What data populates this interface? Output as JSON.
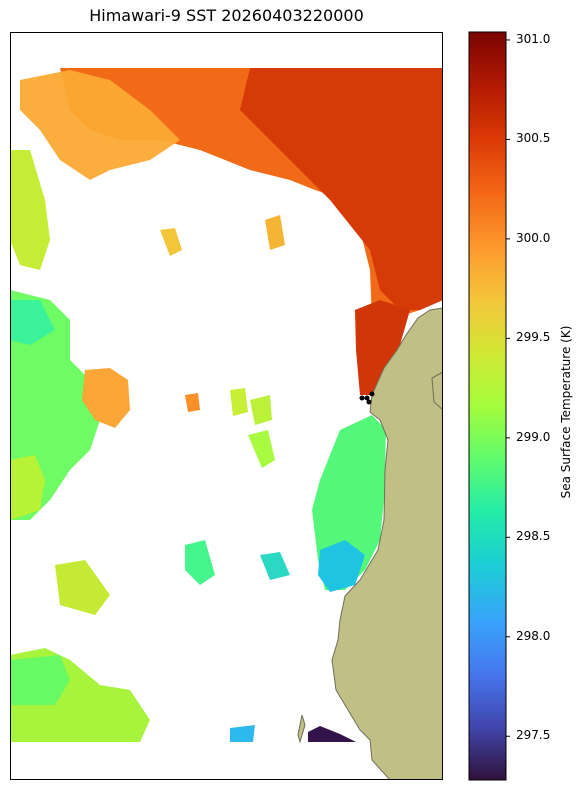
{
  "title": "Himawari-9 SST 20260403220000",
  "colorbar": {
    "label": "Sea Surface Temperature (K)",
    "min": 297.28,
    "max": 301.04,
    "colormap": "turbo",
    "ticks": [
      "297.5",
      "298.0",
      "298.5",
      "299.0",
      "299.5",
      "300.0",
      "300.5",
      "301.0"
    ]
  },
  "map": {
    "land_color": "#c0bf86",
    "coast_color": "#6f6e5a",
    "nodata_color": "#ffffff",
    "point_marker_color": "#000000",
    "regions": [
      {
        "name": "north-warm-belt",
        "sst_k": 300.4
      },
      {
        "name": "east-coastal-warm",
        "sst_k": 300.6
      },
      {
        "name": "northwest-scattered",
        "sst_k": 299.8
      },
      {
        "name": "west-scattered",
        "sst_k": 299.0
      },
      {
        "name": "central-coastal",
        "sst_k": 298.8
      },
      {
        "name": "south-cold-patch",
        "sst_k": 297.4
      }
    ]
  }
}
